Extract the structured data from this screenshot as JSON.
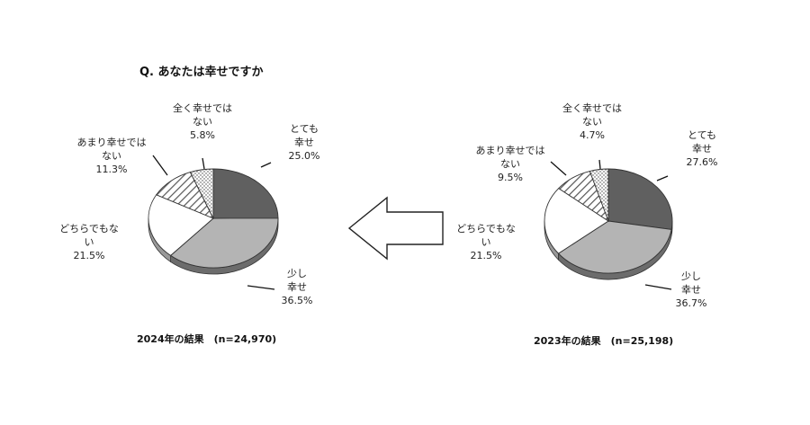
{
  "title": "Q. あなたは幸せですか",
  "colors": {
    "とても幸せ": "#606060",
    "少し幸せ": "#b4b4b4",
    "どちらでもない": "#ffffff",
    "あまり幸せではない": "hatch",
    "全く幸せではない": "dots"
  },
  "chart_data": [
    {
      "type": "pie",
      "caption": "2024年の結果　(n=24,970)",
      "categories": [
        "とても幸せ",
        "少し幸せ",
        "どちらでもない",
        "あまり幸せではない",
        "全く幸せではない"
      ],
      "labels": [
        [
          "とても",
          "幸せ",
          "25.0%"
        ],
        [
          "少し",
          "幸せ",
          "36.5%"
        ],
        [
          "どちらでもな",
          "い",
          "21.5%"
        ],
        [
          "あまり幸せでは",
          "ない",
          "11.3%"
        ],
        [
          "全く幸せでは",
          "ない",
          "5.8%"
        ]
      ],
      "values": [
        25.0,
        36.5,
        21.5,
        11.3,
        5.8
      ]
    },
    {
      "type": "pie",
      "caption": "2023年の結果　(n=25,198)",
      "categories": [
        "とても幸せ",
        "少し幸せ",
        "どちらでもない",
        "あまり幸せではない",
        "全く幸せではない"
      ],
      "labels": [
        [
          "とても",
          "幸せ",
          "27.6%"
        ],
        [
          "少し",
          "幸せ",
          "36.7%"
        ],
        [
          "どちらでもな",
          "い",
          "21.5%"
        ],
        [
          "あまり幸せでは",
          "ない",
          "9.5%"
        ],
        [
          "全く幸せでは",
          "ない",
          "4.7%"
        ]
      ],
      "values": [
        27.6,
        36.7,
        21.5,
        9.5,
        4.7
      ]
    }
  ]
}
